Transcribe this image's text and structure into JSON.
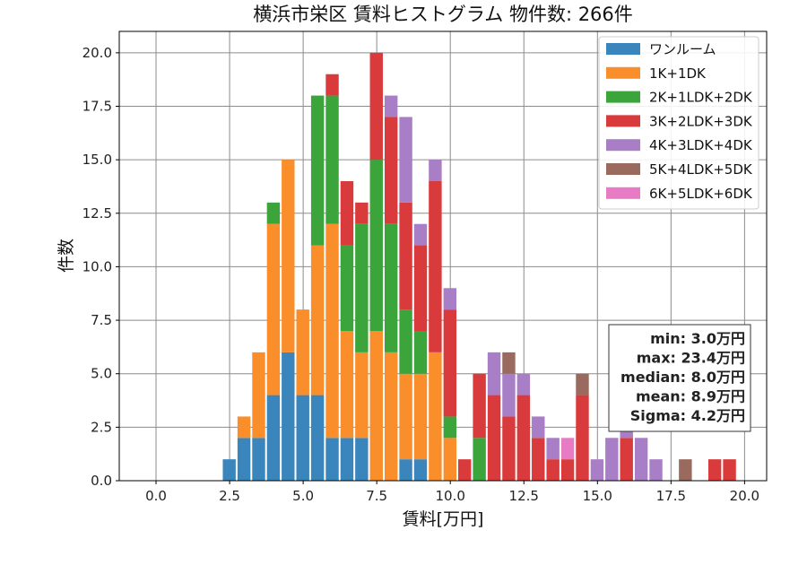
{
  "chart_data": {
    "type": "bar",
    "title": "横浜市栄区 賃料ヒストグラム 物件数: 266件",
    "xlabel": "賃料[万円]",
    "ylabel": "件数",
    "xlim": [
      -1.25,
      20.75
    ],
    "ylim": [
      0,
      21
    ],
    "xticks": [
      "0.0",
      "2.5",
      "5.0",
      "7.5",
      "10.0",
      "12.5",
      "15.0",
      "17.5",
      "20.0"
    ],
    "yticks": [
      "0.0",
      "2.5",
      "5.0",
      "7.5",
      "10.0",
      "12.5",
      "15.0",
      "17.5",
      "20.0"
    ],
    "grid": true,
    "stacked": true,
    "bin_width": 0.5,
    "bins": [
      2.5,
      3.0,
      3.5,
      4.0,
      4.5,
      5.0,
      5.5,
      6.0,
      6.5,
      7.0,
      7.5,
      8.0,
      8.5,
      9.0,
      9.5,
      10.0,
      10.5,
      11.0,
      11.5,
      12.0,
      12.5,
      13.0,
      13.5,
      14.0,
      14.5,
      15.0,
      15.5,
      16.0,
      16.5,
      17.0,
      17.5,
      18.0,
      18.5,
      19.0,
      19.5
    ],
    "legend_position": "top-right",
    "series": [
      {
        "name": "ワンルーム",
        "color": "#3a85bc",
        "values": [
          1,
          2,
          2,
          4,
          6,
          4,
          4,
          2,
          2,
          2,
          0,
          0,
          1,
          1,
          0,
          0,
          0,
          0,
          0,
          0,
          0,
          0,
          0,
          0,
          0,
          0,
          0,
          0,
          0,
          0,
          0,
          0,
          0,
          0,
          0
        ]
      },
      {
        "name": "1K+1DK",
        "color": "#f98e2b",
        "values": [
          0,
          1,
          4,
          8,
          9,
          4,
          7,
          10,
          5,
          4,
          7,
          6,
          4,
          4,
          6,
          2,
          0,
          0,
          0,
          0,
          0,
          0,
          0,
          0,
          0,
          0,
          0,
          0,
          0,
          0,
          0,
          0,
          0,
          0,
          0
        ]
      },
      {
        "name": "2K+1LDK+2DK",
        "color": "#3ba53b",
        "values": [
          0,
          0,
          0,
          1,
          0,
          0,
          7,
          6,
          4,
          6,
          8,
          6,
          3,
          2,
          0,
          1,
          0,
          2,
          0,
          0,
          0,
          0,
          0,
          0,
          0,
          0,
          0,
          0,
          0,
          0,
          0,
          0,
          0,
          0,
          0
        ]
      },
      {
        "name": "3K+2LDK+3DK",
        "color": "#d93a3b",
        "values": [
          0,
          0,
          0,
          0,
          0,
          0,
          0,
          1,
          3,
          1,
          5,
          5,
          5,
          4,
          8,
          5,
          1,
          3,
          4,
          3,
          4,
          2,
          1,
          1,
          4,
          0,
          0,
          2,
          0,
          0,
          0,
          0,
          0,
          1,
          1
        ]
      },
      {
        "name": "4K+3LDK+4DK",
        "color": "#a87ec6",
        "values": [
          0,
          0,
          0,
          0,
          0,
          0,
          0,
          0,
          0,
          0,
          0,
          1,
          4,
          1,
          1,
          1,
          0,
          0,
          2,
          2,
          1,
          1,
          1,
          0,
          0,
          1,
          2,
          1,
          2,
          1,
          0,
          0,
          0,
          0,
          0
        ]
      },
      {
        "name": "5K+4LDK+5DK",
        "color": "#9a6a5e",
        "values": [
          0,
          0,
          0,
          0,
          0,
          0,
          0,
          0,
          0,
          0,
          0,
          0,
          0,
          0,
          0,
          0,
          0,
          0,
          0,
          1,
          0,
          0,
          0,
          0,
          1,
          0,
          0,
          0,
          0,
          0,
          0,
          1,
          0,
          0,
          0
        ]
      },
      {
        "name": "6K+5LDK+6DK",
        "color": "#e77cc5",
        "values": [
          0,
          0,
          0,
          0,
          0,
          0,
          0,
          0,
          0,
          0,
          0,
          0,
          0,
          0,
          0,
          0,
          0,
          0,
          0,
          0,
          0,
          0,
          0,
          1,
          0,
          0,
          0,
          0,
          0,
          0,
          0,
          0,
          0,
          0,
          0
        ]
      }
    ],
    "stats": {
      "min": "min: 3.0万円",
      "max": "max: 23.4万円",
      "median": "median: 8.0万円",
      "mean": "mean: 8.9万円",
      "sigma": "Sigma: 4.2万円"
    }
  }
}
